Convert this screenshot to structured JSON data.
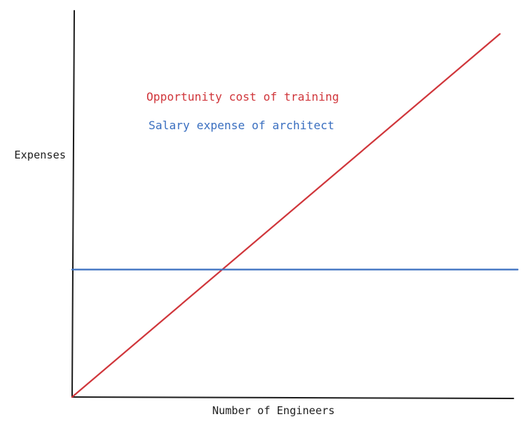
{
  "chart_data": {
    "type": "line",
    "title": "",
    "xlabel": "Number of Engineers",
    "ylabel": "Expenses",
    "grid": false,
    "legend_placement": "top-center",
    "xlim": [
      0,
      1
    ],
    "ylim": [
      0,
      1
    ],
    "series": [
      {
        "name": "Opportunity cost of training",
        "color": "#d0363b",
        "x": [
          0,
          0.96
        ],
        "y": [
          0,
          0.94
        ]
      },
      {
        "name": "Salary expense of architect",
        "color": "#3a6fc0",
        "x": [
          0,
          1
        ],
        "y": [
          0.33,
          0.33
        ]
      }
    ]
  }
}
